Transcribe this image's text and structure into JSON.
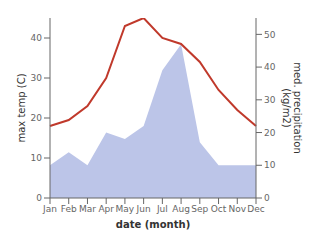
{
  "chart_data": {
    "type": "line",
    "xlabel": "date (month)",
    "ylabel": "max temp (C)",
    "y2label": "med. precipitation\n(kg/m2)",
    "categories": [
      "Jan",
      "Feb",
      "Mar",
      "Apr",
      "May",
      "Jun",
      "Jul",
      "Aug",
      "Sep",
      "Oct",
      "Nov",
      "Dec"
    ],
    "series": [
      {
        "type": "area",
        "axis": "y2",
        "color": "#bcc5e8",
        "values": [
          10,
          14,
          10,
          20,
          18,
          22,
          39,
          47,
          17,
          10,
          10,
          10
        ]
      },
      {
        "type": "line",
        "axis": "y",
        "color": "#c0392b",
        "values": [
          18,
          19.5,
          23,
          30,
          43,
          45,
          40,
          38.5,
          34,
          27,
          22,
          18
        ]
      }
    ],
    "ylim": [
      0,
      45
    ],
    "yticks": [
      0,
      10,
      20,
      30,
      40
    ],
    "y2lim": [
      0,
      55
    ],
    "y2ticks": [
      0,
      10,
      20,
      30,
      40,
      50
    ],
    "grid": false
  }
}
